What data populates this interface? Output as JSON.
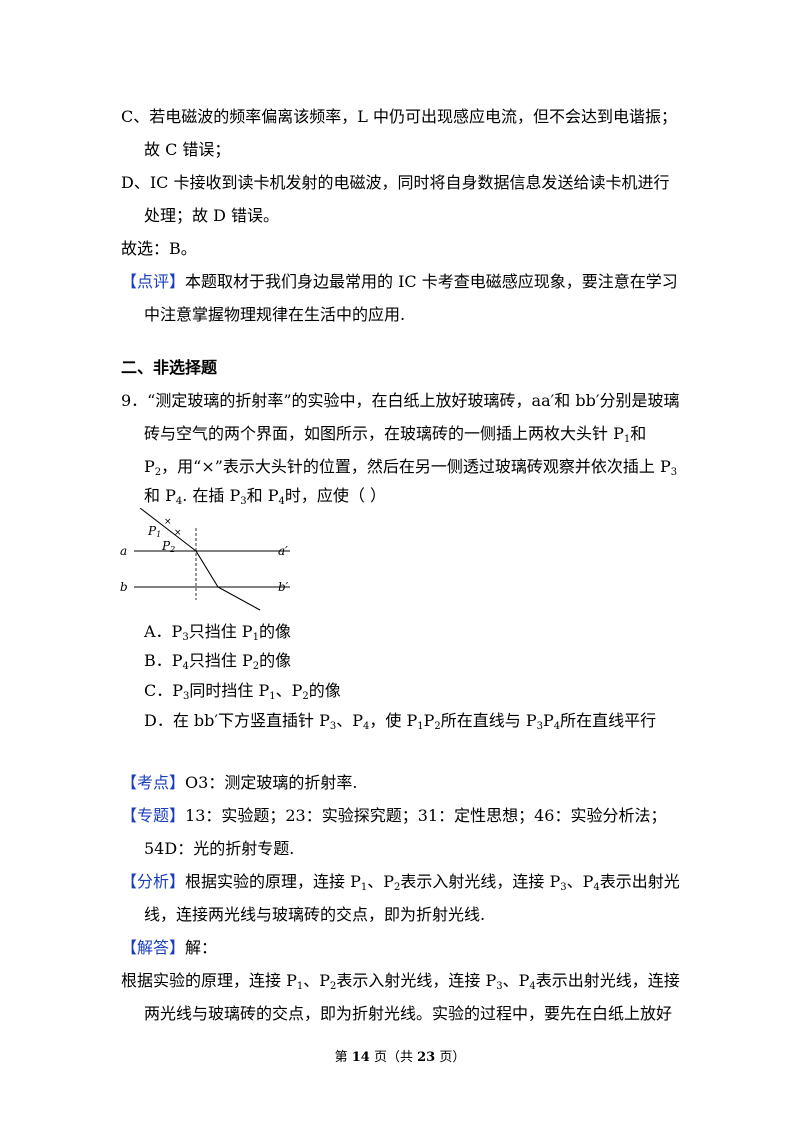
{
  "prev": {
    "optC": [
      "C、若电磁波的频率偏离该频率，L 中仍可出现感应电流，但不会达到电谐振；",
      "故 C 错误；"
    ],
    "optD": [
      "D、IC 卡接收到读卡机发射的电磁波，同时将自身数据信息发送给读卡机进行",
      "处理；故 D 错误。"
    ],
    "choose": "故选：B。",
    "comment_tag": "【点评】",
    "comment": [
      "本题取材于我们身边最常用的 IC 卡考查电磁感应现象，要注意在学习",
      "中注意掌握物理规律在生活中的应用."
    ]
  },
  "section_title": "二、非选择题",
  "q9": {
    "l1": "9．“测定玻璃的折射率”的实验中，在白纸上放好玻璃砖，aa′和 bb′分别是玻璃",
    "l2a": "砖与空气的两个界面，如图所示，在玻璃砖的一侧插上两枚大头针  P",
    "l2b": "和",
    "l3a": "P",
    "l3b": "，用“×”表示大头针的位置，然后在另一侧透过玻璃砖观察并依次插上 P",
    "l4a": "和 P",
    "l4b": ". 在插  P",
    "l4c": "和 P",
    "l4d": "时，应使（        ）"
  },
  "figure": {
    "P1": "P",
    "P2": "P",
    "s1": "1",
    "s2": "2",
    "a": "a",
    "a2": "a′",
    "b": "b",
    "b2": "b′"
  },
  "options": {
    "A": [
      "A．P",
      "3",
      "只挡住  P",
      "1",
      "的像"
    ],
    "B": [
      "B．P",
      "4",
      "只挡住  P",
      "2",
      "的像"
    ],
    "C": [
      "C．P",
      "3",
      "同时挡住  P",
      "1",
      "、P",
      "2",
      "的像"
    ],
    "D": [
      "D．在 bb′下方竖直插针 P",
      "3",
      "、P",
      "4",
      "，使 P",
      "1",
      "P",
      "2",
      "所在直线与 P",
      "3",
      "P",
      "4",
      "所在直线平行"
    ]
  },
  "analysis": {
    "kaodian_tag": "【考点】",
    "kaodian": "O3：测定玻璃的折射率.",
    "zhuanti_tag": "【专题】",
    "zhuanti": [
      "13：实验题；23：实验探究题；31：定性思想；46：实验分析法；",
      "54D：光的折射专题."
    ],
    "fenxi_tag": "【分析】",
    "fenxi_a": "根据实验的原理，连接 P",
    "fenxi_b": "、P",
    "fenxi_c": "表示入射光线，连接 P",
    "fenxi_d": "、P",
    "fenxi_e": "表示出射光",
    "fenxi2": "线，连接两光线与玻璃砖的交点，即为折射光线.",
    "jieda_tag": "【解答】",
    "jieda": "解：",
    "ans_a": "根据实验的原理，连接 P",
    "ans_b": "、P",
    "ans_c": "表示入射光线，连接 P",
    "ans_d": "、P",
    "ans_e": "表示出射光线，连接",
    "ans2": "两光线与玻璃砖的交点，即为折射光线。实验的过程中，要先在白纸上放好",
    "subs": {
      "one": "1",
      "two": "2",
      "three": "3",
      "four": "4"
    }
  },
  "footer": {
    "a": "第 ",
    "page": "14",
    "b": " 页（共 ",
    "total": "23",
    "c": " 页）"
  }
}
